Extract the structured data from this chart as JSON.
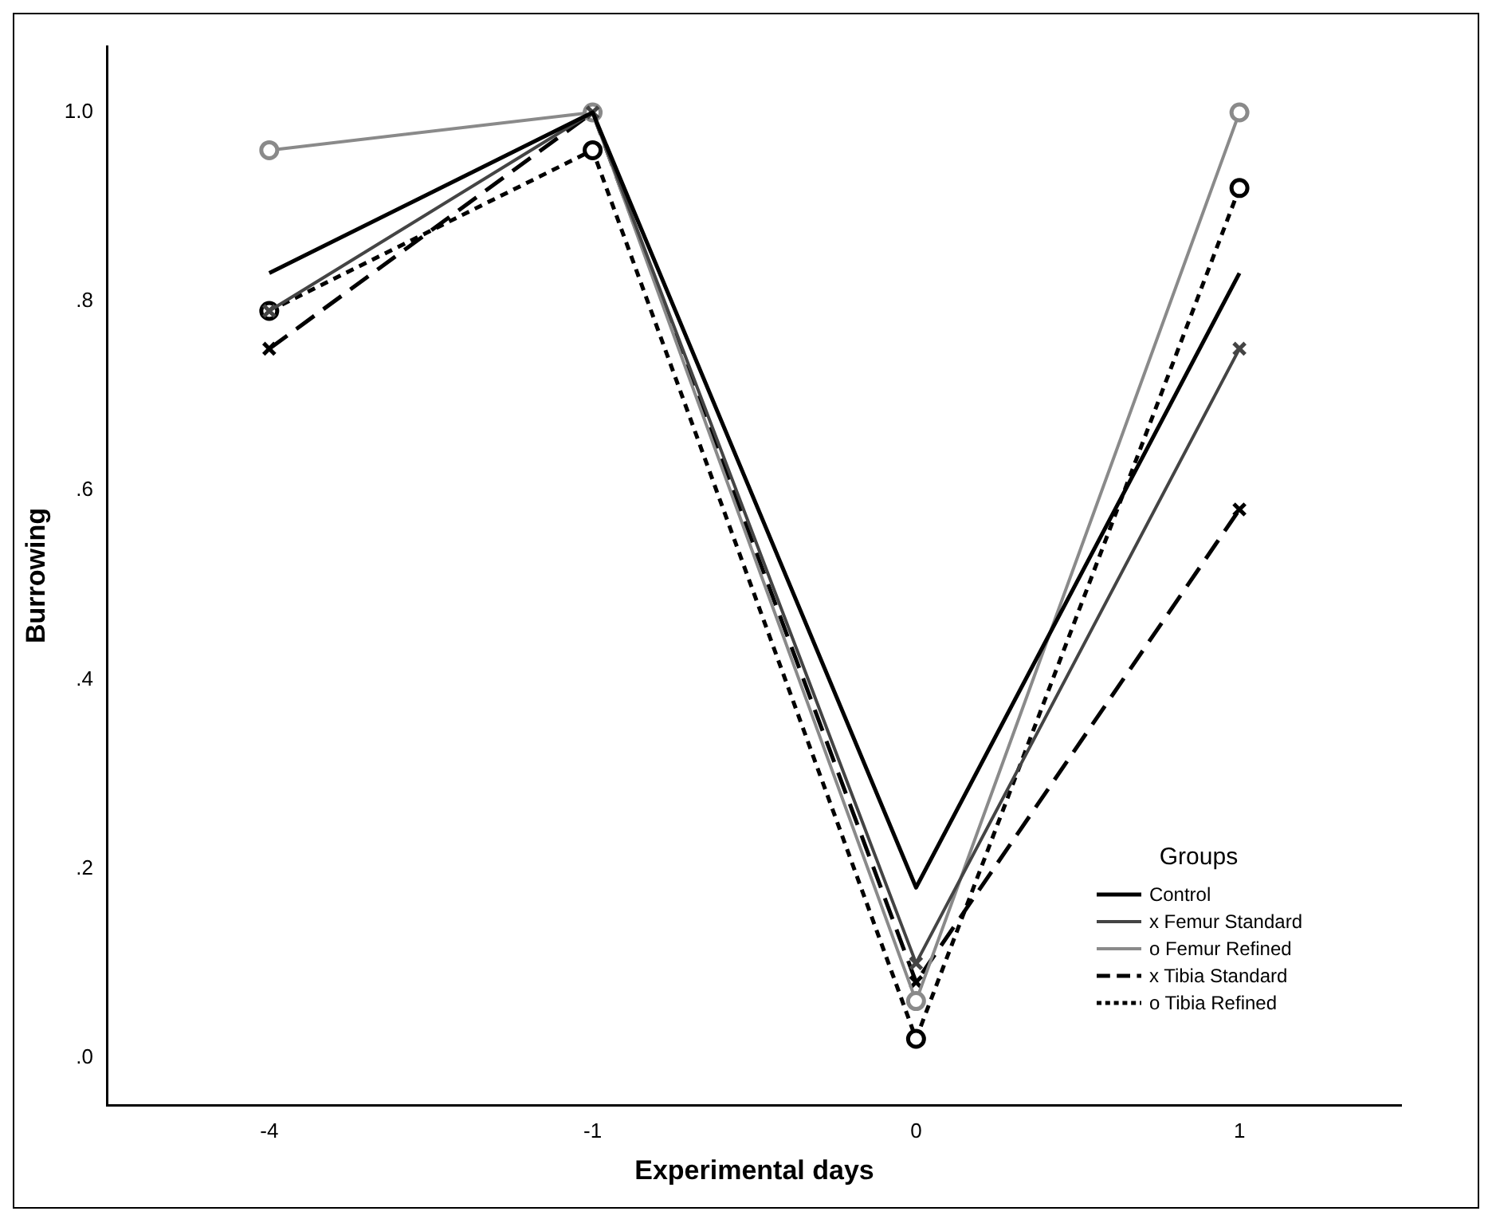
{
  "chart_data": {
    "type": "line",
    "xlabel": "Experimental days",
    "ylabel": "Burrowing",
    "legend_title": "Groups",
    "legend": "bottom right",
    "grid": false,
    "categories": [
      "-4",
      "-1",
      "0",
      "1"
    ],
    "ylim": [
      -0.05,
      1.07
    ],
    "yticks": [
      {
        "value": 0,
        "label": ".0"
      },
      {
        "value": 0.2,
        "label": ".2"
      },
      {
        "value": 0.4,
        "label": ".4"
      },
      {
        "value": 0.6,
        "label": ".6"
      },
      {
        "value": 0.8,
        "label": ".8"
      },
      {
        "value": 1,
        "label": "1.0"
      }
    ],
    "series": [
      {
        "name": "Control",
        "color": "#000000",
        "line_style": "solid",
        "marker": "none",
        "values": [
          0.83,
          1.0,
          0.18,
          0.83
        ]
      },
      {
        "name": "x Femur Standard",
        "color": "#444444",
        "line_style": "solid",
        "marker": "cross",
        "values": [
          0.79,
          1.0,
          0.1,
          0.75
        ]
      },
      {
        "name": "o Femur Refined",
        "color": "#8a8a8a",
        "line_style": "solid",
        "marker": "circle",
        "values": [
          0.96,
          1.0,
          0.06,
          1.0
        ]
      },
      {
        "name": "x Tibia Standard",
        "color": "#000000",
        "line_style": "dashed",
        "marker": "cross",
        "values": [
          0.75,
          1.0,
          0.08,
          0.58
        ]
      },
      {
        "name": "o Tibia Refined",
        "color": "#000000",
        "line_style": "dotted",
        "marker": "circle",
        "values": [
          0.79,
          0.96,
          0.02,
          0.92
        ]
      }
    ]
  }
}
